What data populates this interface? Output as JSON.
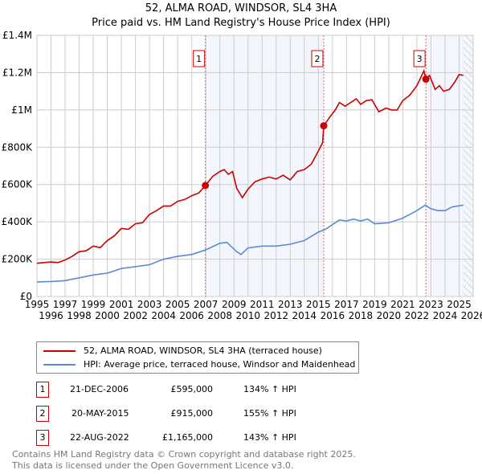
{
  "title": "52, ALMA ROAD, WINDSOR, SL4 3HA",
  "subtitle": "Price paid vs. HM Land Registry's House Price Index (HPI)",
  "chart_data": {
    "type": "line",
    "xlim": [
      1995,
      2026
    ],
    "ylim": [
      0,
      1400000
    ],
    "x_ticks": [
      "1995",
      "1996",
      "1997",
      "1998",
      "1999",
      "2000",
      "2001",
      "2002",
      "2003",
      "2004",
      "2005",
      "2006",
      "2007",
      "2008",
      "2009",
      "2010",
      "2011",
      "2012",
      "2013",
      "2014",
      "2015",
      "2016",
      "2017",
      "2018",
      "2019",
      "2020",
      "2021",
      "2022",
      "2023",
      "2024",
      "2025",
      "2026"
    ],
    "y_ticks": [
      {
        "v": 0,
        "l": "£0"
      },
      {
        "v": 200000,
        "l": "£200K"
      },
      {
        "v": 400000,
        "l": "£400K"
      },
      {
        "v": 600000,
        "l": "£600K"
      },
      {
        "v": 800000,
        "l": "£800K"
      },
      {
        "v": 1000000,
        "l": "£1M"
      },
      {
        "v": 1200000,
        "l": "£1.2M"
      },
      {
        "v": 1400000,
        "l": "£1.4M"
      }
    ],
    "data_end": 2025.3,
    "series": [
      {
        "name": "52, ALMA ROAD, WINDSOR, SL4 3HA (terraced house)",
        "color": "#cc0000",
        "x": [
          1995,
          1996,
          1996.5,
          1997,
          1997.5,
          1998,
          1998.5,
          1999,
          1999.5,
          2000,
          2000.5,
          2001,
          2001.5,
          2002,
          2002.5,
          2003,
          2003.5,
          2004,
          2004.5,
          2005,
          2005.5,
          2006,
          2006.5,
          2006.97,
          2007.5,
          2008,
          2008.3,
          2008.6,
          2008.9,
          2009.2,
          2009.6,
          2010,
          2010.5,
          2011,
          2011.5,
          2012,
          2012.5,
          2013,
          2013.5,
          2014,
          2014.5,
          2015,
          2015.3,
          2015.38,
          2015.8,
          2016.2,
          2016.5,
          2016.9,
          2017.3,
          2017.7,
          2018,
          2018.4,
          2018.8,
          2019.3,
          2019.8,
          2020.2,
          2020.6,
          2021,
          2021.5,
          2022,
          2022.5,
          2022.64,
          2022.9,
          2023.3,
          2023.6,
          2023.9,
          2024.3,
          2024.7,
          2025,
          2025.3
        ],
        "y": [
          178000,
          185000,
          182000,
          195000,
          215000,
          240000,
          245000,
          270000,
          262000,
          300000,
          325000,
          365000,
          360000,
          390000,
          395000,
          440000,
          460000,
          485000,
          485000,
          510000,
          520000,
          540000,
          555000,
          595000,
          645000,
          670000,
          680000,
          655000,
          670000,
          580000,
          530000,
          575000,
          615000,
          630000,
          640000,
          630000,
          650000,
          625000,
          670000,
          680000,
          710000,
          780000,
          825000,
          915000,
          960000,
          1000000,
          1040000,
          1020000,
          1040000,
          1060000,
          1030000,
          1050000,
          1055000,
          990000,
          1010000,
          1000000,
          1000000,
          1050000,
          1080000,
          1130000,
          1210000,
          1165000,
          1185000,
          1110000,
          1130000,
          1100000,
          1110000,
          1150000,
          1190000,
          1185000
        ]
      },
      {
        "name": "HPI: Average price, terraced house, Windsor and Maidenhead",
        "color": "#5b8bd0",
        "x": [
          1995,
          1996,
          1997,
          1998,
          1999,
          2000,
          2001,
          2002,
          2003,
          2004,
          2005,
          2006,
          2007,
          2008,
          2008.5,
          2009.2,
          2009.5,
          2010,
          2011,
          2012,
          2013,
          2014,
          2015,
          2015.5,
          2016,
          2016.5,
          2017,
          2017.5,
          2018,
          2018.5,
          2019,
          2020,
          2021,
          2022,
          2022.6,
          2023,
          2023.5,
          2024,
          2024.5,
          2025.3
        ],
        "y": [
          78000,
          80000,
          85000,
          100000,
          115000,
          125000,
          150000,
          160000,
          170000,
          200000,
          215000,
          225000,
          250000,
          285000,
          290000,
          240000,
          225000,
          260000,
          270000,
          270000,
          280000,
          300000,
          345000,
          360000,
          385000,
          410000,
          405000,
          415000,
          405000,
          415000,
          390000,
          395000,
          420000,
          460000,
          490000,
          470000,
          460000,
          460000,
          480000,
          490000
        ]
      }
    ],
    "sales": [
      {
        "label": "1",
        "x": 2006.97,
        "y": 595000,
        "date": "21-DEC-2006",
        "price": "£595,000",
        "hpi": "134% ↑ HPI"
      },
      {
        "label": "2",
        "x": 2015.38,
        "y": 915000,
        "date": "20-MAY-2015",
        "price": "£915,000",
        "hpi": "155% ↑ HPI"
      },
      {
        "label": "3",
        "x": 2022.64,
        "y": 1165000,
        "date": "22-AUG-2022",
        "price": "£1,165,000",
        "hpi": "143% ↑ HPI"
      }
    ]
  },
  "legend": {
    "red": "52, ALMA ROAD, WINDSOR, SL4 3HA (terraced house)",
    "blue": "HPI: Average price, terraced house, Windsor and Maidenhead"
  },
  "footer": {
    "line1": "Contains HM Land Registry data © Crown copyright and database right 2025.",
    "line2": "This data is licensed under the Open Government Licence v3.0."
  }
}
